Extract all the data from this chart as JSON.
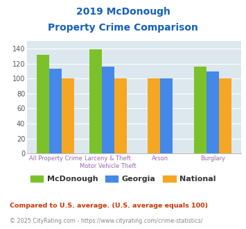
{
  "title_line1": "2019 McDonough",
  "title_line2": "Property Crime Comparison",
  "cat_labels_line1": [
    "All Property Crime",
    "Larceny & Theft",
    "Arson",
    "Burglary"
  ],
  "cat_labels_line2": [
    "",
    "Motor Vehicle Theft",
    "",
    ""
  ],
  "mcdonough": [
    132,
    139,
    0,
    116
  ],
  "georgia": [
    113,
    116,
    100,
    110
  ],
  "national": [
    100,
    100,
    100,
    100
  ],
  "bar_color_mcdonough": "#7dc12a",
  "bar_color_georgia": "#4488e8",
  "bar_color_national": "#f5a623",
  "ylim": [
    0,
    150
  ],
  "yticks": [
    0,
    20,
    40,
    60,
    80,
    100,
    120,
    140
  ],
  "background_color": "#dce8ee",
  "title_color": "#1560bd",
  "xlabel_color": "#9966aa",
  "legend_label_color": "#333333",
  "footnote1": "Compared to U.S. average. (U.S. average equals 100)",
  "footnote2": "© 2025 CityRating.com - https://www.cityrating.com/crime-statistics/",
  "footnote1_color": "#cc3300",
  "footnote2_color": "#888888"
}
